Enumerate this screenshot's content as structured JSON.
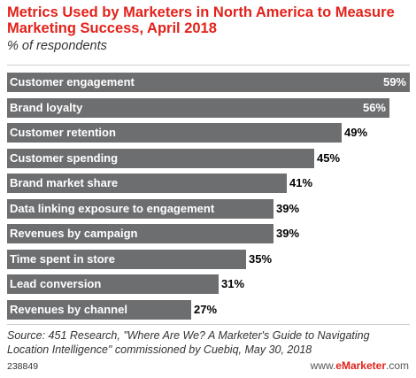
{
  "chart_data": {
    "type": "bar",
    "orientation": "horizontal",
    "title": "Metrics Used by Marketers in North America to Measure Marketing Success, April 2018",
    "subtitle": "% of respondents",
    "categories": [
      "Customer engagement",
      "Brand loyalty",
      "Customer retention",
      "Customer spending",
      "Brand market share",
      "Data linking exposure to engagement",
      "Revenues by campaign",
      "Time spent in store",
      "Lead conversion",
      "Revenues by channel"
    ],
    "values": [
      59,
      56,
      49,
      45,
      41,
      39,
      39,
      35,
      31,
      27
    ],
    "value_labels": [
      "59%",
      "56%",
      "49%",
      "45%",
      "41%",
      "39%",
      "39%",
      "35%",
      "31%",
      "27%"
    ],
    "xlim": [
      0,
      59
    ],
    "grid": false,
    "bar_color": "#6d6e70"
  },
  "footer": {
    "source": "Source: 451 Research, \"Where Are We? A Marketer's Guide to Navigating Location Intelligence\" commissioned by Cuebiq, May 30, 2018",
    "chart_id": "238849",
    "logo_prefix": "www.",
    "logo_brand": "eMarketer",
    "logo_suffix": ".com"
  },
  "colors": {
    "title": "#e2221b",
    "bar": "#6d6e70"
  }
}
